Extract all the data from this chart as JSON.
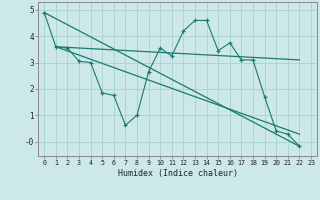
{
  "xlabel": "Humidex (Indice chaleur)",
  "bg_color": "#cce8e8",
  "line_color": "#1a7a6e",
  "grid_color": "#aed4d4",
  "xlim": [
    -0.5,
    23.5
  ],
  "ylim": [
    -0.55,
    5.3
  ],
  "yticks": [
    0,
    1,
    2,
    3,
    4,
    5
  ],
  "ytick_labels": [
    "-0",
    "1",
    "2",
    "3",
    "4",
    "5"
  ],
  "xticks": [
    0,
    1,
    2,
    3,
    4,
    5,
    6,
    7,
    8,
    9,
    10,
    11,
    12,
    13,
    14,
    15,
    16,
    17,
    18,
    19,
    20,
    21,
    22,
    23
  ],
  "lines": [
    {
      "x": [
        0,
        1,
        2,
        3,
        4,
        5,
        6,
        7,
        8,
        9,
        10,
        11,
        12,
        13,
        14,
        15,
        16,
        17,
        18,
        19,
        20,
        21,
        22
      ],
      "y": [
        4.9,
        3.6,
        3.55,
        3.05,
        3.0,
        1.85,
        1.75,
        0.62,
        1.0,
        2.65,
        3.55,
        3.25,
        4.2,
        4.6,
        4.6,
        3.45,
        3.75,
        3.1,
        3.1,
        1.7,
        0.4,
        0.28,
        -0.18
      ],
      "marker": true
    },
    {
      "x": [
        1,
        22
      ],
      "y": [
        3.6,
        3.1
      ],
      "marker": false
    },
    {
      "x": [
        1,
        22
      ],
      "y": [
        3.6,
        0.28
      ],
      "marker": false
    },
    {
      "x": [
        0,
        22
      ],
      "y": [
        4.9,
        -0.18
      ],
      "marker": false
    }
  ]
}
